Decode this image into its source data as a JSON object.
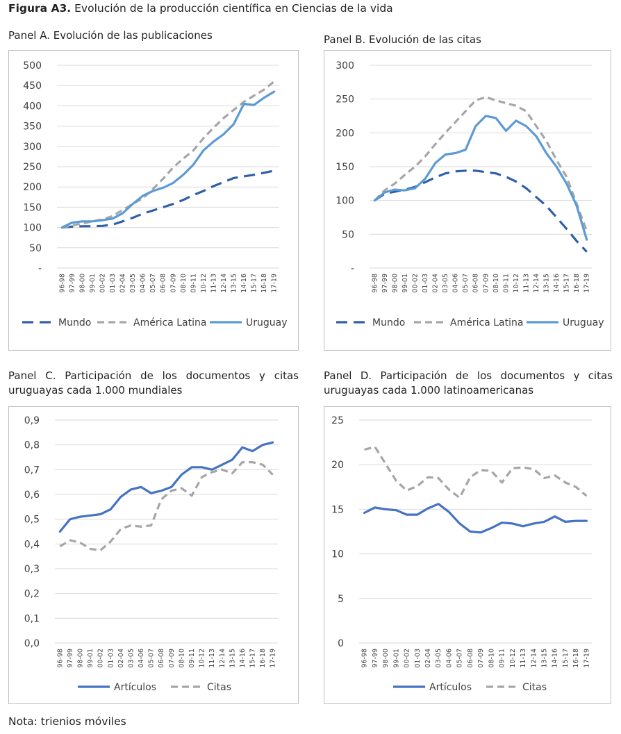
{
  "figure": {
    "label": "Figura A3.",
    "title": "Evolución de la producción científica en Ciencias de la vida",
    "note": "Nota: trienios móviles"
  },
  "chart_data": [
    {
      "type": "line",
      "title": "Panel A. Evolución de las publicaciones",
      "categories": [
        "96-98",
        "97-99",
        "98-00",
        "99-01",
        "00-02",
        "01-03",
        "02-04",
        "03-05",
        "04-06",
        "05-07",
        "06-08",
        "07-09",
        "08-10",
        "09-11",
        "10-12",
        "11-13",
        "12-14",
        "13-15",
        "14-16",
        "15-17",
        "16-18",
        "17-19"
      ],
      "y_ticks": [
        "-",
        "50",
        "100",
        "150",
        "200",
        "250",
        "300",
        "350",
        "400",
        "450",
        "500"
      ],
      "ylim": [
        0,
        500
      ],
      "legend_position": "bottom",
      "series": [
        {
          "name": "Mundo",
          "color": "#2e5fa8",
          "dash": "long-dash",
          "values": [
            100,
            102,
            103,
            103,
            104,
            107,
            115,
            124,
            134,
            142,
            150,
            158,
            168,
            180,
            190,
            202,
            212,
            222,
            226,
            230,
            235,
            240
          ]
        },
        {
          "name": "América Latina",
          "color": "#a6a6a6",
          "dash": "dash",
          "values": [
            100,
            105,
            110,
            115,
            120,
            128,
            143,
            158,
            172,
            195,
            220,
            248,
            270,
            290,
            320,
            346,
            370,
            390,
            410,
            425,
            440,
            460
          ]
        },
        {
          "name": "Uruguay",
          "color": "#5b9bd5",
          "dash": "solid",
          "values": [
            100,
            112,
            115,
            115,
            118,
            122,
            135,
            158,
            178,
            190,
            198,
            210,
            230,
            255,
            290,
            312,
            330,
            355,
            405,
            402,
            420,
            435
          ]
        }
      ]
    },
    {
      "type": "line",
      "title": "Panel B. Evolución de las citas",
      "categories": [
        "96-98",
        "97-99",
        "98-00",
        "99-01",
        "00-02",
        "01-03",
        "02-04",
        "03-05",
        "04-06",
        "05-07",
        "06-08",
        "07-09",
        "08-10",
        "09-11",
        "10-12",
        "11-13",
        "12-14",
        "13-15",
        "14-16",
        "15-17",
        "16-18",
        "17-19"
      ],
      "y_ticks": [
        "-",
        "50",
        "100",
        "150",
        "200",
        "250",
        "300"
      ],
      "ylim": [
        0,
        300
      ],
      "legend_position": "bottom",
      "series": [
        {
          "name": "Mundo",
          "color": "#2e5fa8",
          "dash": "long-dash",
          "values": [
            100,
            110,
            113,
            116,
            120,
            127,
            134,
            140,
            143,
            144,
            144,
            142,
            140,
            135,
            128,
            118,
            105,
            92,
            75,
            58,
            40,
            24
          ]
        },
        {
          "name": "América Latina",
          "color": "#a6a6a6",
          "dash": "dash",
          "values": [
            100,
            115,
            125,
            138,
            150,
            165,
            183,
            200,
            216,
            232,
            248,
            253,
            248,
            244,
            240,
            232,
            210,
            188,
            160,
            135,
            95,
            55
          ]
        },
        {
          "name": "Uruguay",
          "color": "#5b9bd5",
          "dash": "solid",
          "values": [
            100,
            112,
            116,
            115,
            118,
            132,
            155,
            168,
            170,
            175,
            210,
            225,
            222,
            203,
            218,
            210,
            195,
            170,
            150,
            125,
            92,
            42
          ]
        }
      ]
    },
    {
      "type": "line",
      "title": "Panel C. Participación de los documentos y citas uruguayas cada 1.000 mundiales",
      "categories": [
        "96-98",
        "97-99",
        "98-00",
        "99-01",
        "00-02",
        "01-03",
        "02-04",
        "03-05",
        "04-06",
        "05-07",
        "06-08",
        "07-09",
        "08-10",
        "09-11",
        "10-12",
        "11-13",
        "12-14",
        "13-15",
        "14-16",
        "15-17",
        "16-18",
        "17-19"
      ],
      "y_ticks": [
        "0,0",
        "0,1",
        "0,2",
        "0,3",
        "0,4",
        "0,5",
        "0,6",
        "0,7",
        "0,8",
        "0,9"
      ],
      "ylim": [
        0,
        0.9
      ],
      "legend_position": "bottom",
      "series": [
        {
          "name": "Artículos",
          "color": "#4472c4",
          "dash": "solid",
          "values": [
            0.45,
            0.5,
            0.51,
            0.515,
            0.52,
            0.54,
            0.59,
            0.62,
            0.63,
            0.605,
            0.615,
            0.63,
            0.68,
            0.71,
            0.71,
            0.7,
            0.72,
            0.74,
            0.79,
            0.775,
            0.8,
            0.81
          ]
        },
        {
          "name": "Citas",
          "color": "#a6a6a6",
          "dash": "dash",
          "values": [
            0.39,
            0.415,
            0.405,
            0.38,
            0.375,
            0.41,
            0.46,
            0.475,
            0.47,
            0.475,
            0.58,
            0.615,
            0.625,
            0.595,
            0.67,
            0.69,
            0.7,
            0.685,
            0.73,
            0.73,
            0.72,
            0.68
          ]
        }
      ]
    },
    {
      "type": "line",
      "title": "Panel D. Participación de los documentos y citas uruguayas cada 1.000 latinoamericanas",
      "categories": [
        "96-98",
        "97-99",
        "98-00",
        "99-01",
        "00-02",
        "01-03",
        "02-04",
        "03-05",
        "04-06",
        "05-07",
        "06-08",
        "07-09",
        "08-10",
        "09-11",
        "10-12",
        "11-13",
        "12-14",
        "13-15",
        "14-16",
        "15-17",
        "16-18",
        "17-19"
      ],
      "y_ticks": [
        "0",
        "5",
        "10",
        "15",
        "20",
        "25"
      ],
      "ylim": [
        0,
        25
      ],
      "legend_position": "bottom",
      "series": [
        {
          "name": "Artículos",
          "color": "#4472c4",
          "dash": "solid",
          "values": [
            14.6,
            15.2,
            15.0,
            14.9,
            14.4,
            14.4,
            15.1,
            15.6,
            14.7,
            13.4,
            12.5,
            12.4,
            12.9,
            13.5,
            13.4,
            13.1,
            13.4,
            13.6,
            14.2,
            13.6,
            13.7,
            13.7
          ]
        },
        {
          "name": "Citas",
          "color": "#a6a6a6",
          "dash": "dash",
          "values": [
            21.7,
            22.0,
            20.1,
            18.2,
            17.1,
            17.6,
            18.6,
            18.5,
            17.2,
            16.3,
            18.6,
            19.4,
            19.3,
            18.0,
            19.6,
            19.7,
            19.5,
            18.5,
            18.8,
            18.0,
            17.5,
            16.5
          ]
        }
      ]
    }
  ]
}
